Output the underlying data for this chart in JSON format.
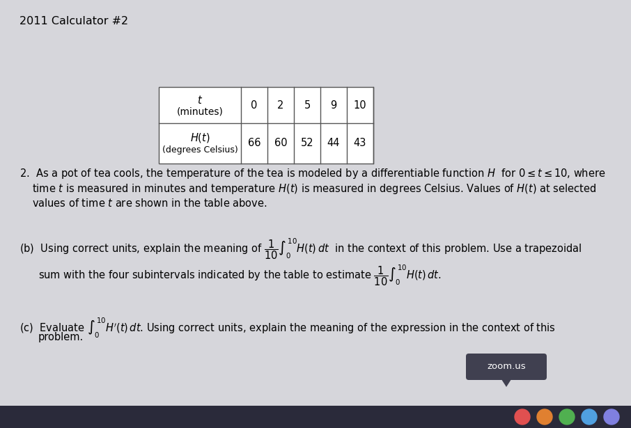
{
  "title": "2011 Calculator #2",
  "bg_color": "#c8c8cc",
  "table": {
    "t_values": [
      "0",
      "2",
      "5",
      "9",
      "10"
    ],
    "H_values": [
      "66",
      "60",
      "52",
      "44",
      "43"
    ]
  },
  "watermark": "zoom.us",
  "font_size_title": 11.5,
  "font_size_body": 10.5,
  "font_size_table": 10.5
}
